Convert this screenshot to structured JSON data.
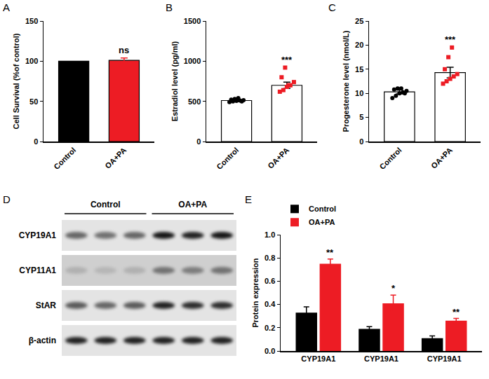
{
  "chart_data": [
    {
      "panel": "A",
      "type": "bar",
      "categories": [
        "Control",
        "OA+PA"
      ],
      "values": [
        100,
        101
      ],
      "errors": [
        null,
        3
      ],
      "colors": [
        "#000000",
        "#ed1c24"
      ],
      "ylabel": "Cell Survival (%of control)",
      "ylim": [
        0,
        150
      ],
      "yticks": [
        0,
        50,
        100,
        150
      ],
      "annotations": [
        {
          "text": "ns",
          "category": 1
        }
      ]
    },
    {
      "panel": "B",
      "type": "bar",
      "categories": [
        "Control",
        "OA+PA"
      ],
      "values": [
        510,
        700
      ],
      "errors": [
        12,
        40
      ],
      "colors": [
        "#ffffff",
        "#ffffff"
      ],
      "ylabel": "Estradiol level (pg/ml)",
      "ylim": [
        0,
        1500
      ],
      "yticks": [
        0,
        500,
        1000,
        1500
      ],
      "points": [
        {
          "category": 0,
          "color": "#000000",
          "marker": "circle",
          "values": [
            490,
            500,
            505,
            510,
            515,
            520,
            530,
            540,
            500
          ]
        },
        {
          "category": 1,
          "color": "#ed1c24",
          "marker": "square",
          "values": [
            620,
            640,
            680,
            700,
            740,
            800,
            920,
            700
          ]
        }
      ],
      "annotations": [
        {
          "text": "***",
          "category": 1
        }
      ]
    },
    {
      "panel": "C",
      "type": "bar",
      "categories": [
        "Control",
        "OA+PA"
      ],
      "values": [
        10.3,
        14.3
      ],
      "errors": [
        0.4,
        1.1
      ],
      "colors": [
        "#ffffff",
        "#ffffff"
      ],
      "ylabel": "Progesterone level (nmol/L)",
      "ylim": [
        0,
        25
      ],
      "yticks": [
        0,
        5,
        10,
        15,
        20,
        25
      ],
      "points": [
        {
          "category": 0,
          "color": "#000000",
          "marker": "circle",
          "values": [
            9,
            9.5,
            10,
            10.2,
            10.5,
            10.8,
            11,
            11,
            10
          ]
        },
        {
          "category": 1,
          "color": "#ed1c24",
          "marker": "square",
          "values": [
            12,
            12.5,
            13,
            13.5,
            14,
            15,
            17.5,
            19.5
          ]
        }
      ],
      "annotations": [
        {
          "text": "***",
          "category": 1
        }
      ]
    },
    {
      "panel": "E",
      "type": "bar",
      "categories": [
        "CYP19A1",
        "CYP19A1",
        "CYP19A1"
      ],
      "ylabel": "Protein expression",
      "ylim": [
        0,
        1.0
      ],
      "yticks": [
        {
          "value": 0,
          "label": "0.0"
        },
        0.2,
        0.4,
        0.6,
        0.8,
        {
          "value": 1.0,
          "label": "1.0"
        }
      ],
      "legend": "top-left",
      "series": [
        {
          "name": "Control",
          "color": "#000000",
          "values": [
            0.33,
            0.19,
            0.11
          ],
          "errors": [
            0.05,
            0.02,
            0.02
          ]
        },
        {
          "name": "OA+PA",
          "color": "#ed1c24",
          "values": [
            0.75,
            0.41,
            0.26
          ],
          "errors": [
            0.04,
            0.07,
            0.02
          ]
        }
      ],
      "annotations": [
        {
          "text": "**",
          "series": "OA+PA",
          "category": 0
        },
        {
          "text": "*",
          "series": "OA+PA",
          "category": 1
        },
        {
          "text": "**",
          "series": "OA+PA",
          "category": 2
        }
      ]
    }
  ],
  "blot": {
    "panel": "D",
    "groups": [
      {
        "label": "Control",
        "lanes": 3
      },
      {
        "label": "OA+PA",
        "lanes": 3
      }
    ],
    "rows": [
      {
        "label": "CYP19A1",
        "intensity": [
          0.55,
          0.5,
          0.55,
          0.9,
          0.85,
          0.9
        ]
      },
      {
        "label": "CYP11A1",
        "intensity": [
          0.15,
          0.12,
          0.15,
          0.45,
          0.4,
          0.45
        ]
      },
      {
        "label": "StAR",
        "intensity": [
          0.6,
          0.55,
          0.6,
          0.85,
          0.8,
          0.8
        ]
      },
      {
        "label": "β-actin",
        "intensity": [
          0.85,
          0.85,
          0.85,
          0.85,
          0.85,
          0.85
        ]
      }
    ]
  }
}
